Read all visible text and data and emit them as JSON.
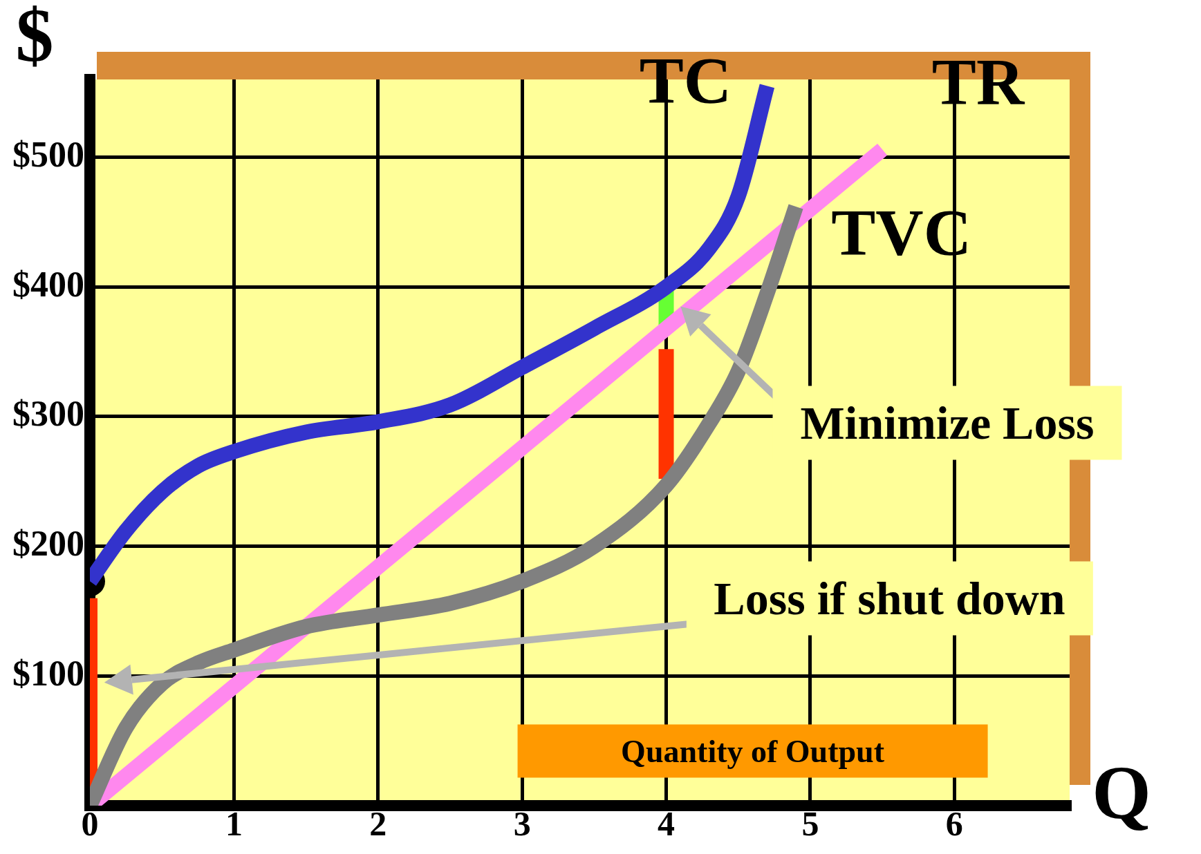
{
  "chart_data": {
    "type": "line",
    "xlabel": "Q",
    "ylabel": "$",
    "xlim": [
      0,
      6.8
    ],
    "ylim": [
      0,
      560
    ],
    "xticks": [
      0,
      1,
      2,
      3,
      4,
      5,
      6
    ],
    "yticks": [
      {
        "value": 100,
        "label": "$100"
      },
      {
        "value": 200,
        "label": "$200"
      },
      {
        "value": 300,
        "label": "$300"
      },
      {
        "value": 400,
        "label": "$400"
      },
      {
        "value": 500,
        "label": "$500"
      }
    ],
    "grid": true,
    "legend": false,
    "marker": "none",
    "line_style": "solid",
    "series": [
      {
        "name": "TC",
        "color": "#3333cc",
        "x": [
          0,
          0.25,
          0.5,
          0.75,
          1,
          1.5,
          2,
          2.5,
          3,
          3.5,
          4,
          4.3,
          4.5,
          4.7
        ],
        "values": [
          173,
          212,
          242,
          262,
          273,
          288,
          296,
          309,
          338,
          368,
          400,
          430,
          470,
          555
        ]
      },
      {
        "name": "TVC",
        "color": "#808080",
        "x": [
          0,
          0.25,
          0.5,
          0.75,
          1,
          1.5,
          2,
          2.5,
          3,
          3.5,
          4,
          4.3,
          4.5,
          4.7,
          4.9
        ],
        "values": [
          0,
          60,
          94,
          110,
          120,
          138,
          147,
          156,
          173,
          200,
          247,
          295,
          335,
          395,
          462
        ]
      },
      {
        "name": "TR",
        "color": "#ff88ee",
        "x": [
          0,
          5.5
        ],
        "values": [
          0,
          506
        ]
      },
      {
        "color": "#ff3300",
        "x": [
          0,
          0
        ],
        "values": [
          0,
          160
        ]
      },
      {
        "color": "#ff3300",
        "x": [
          4,
          4
        ],
        "values": [
          252,
          352
        ]
      },
      {
        "color": "#66ff33",
        "x": [
          4,
          4
        ],
        "values": [
          368,
          400
        ]
      },
      {
        "type": "scatter",
        "marker": "circle",
        "color": "#000000",
        "x": [
          0
        ],
        "values": [
          173
        ]
      }
    ],
    "annotations": [
      "Minimize Loss",
      "Loss if shut down",
      "Quantity of Output"
    ]
  }
}
